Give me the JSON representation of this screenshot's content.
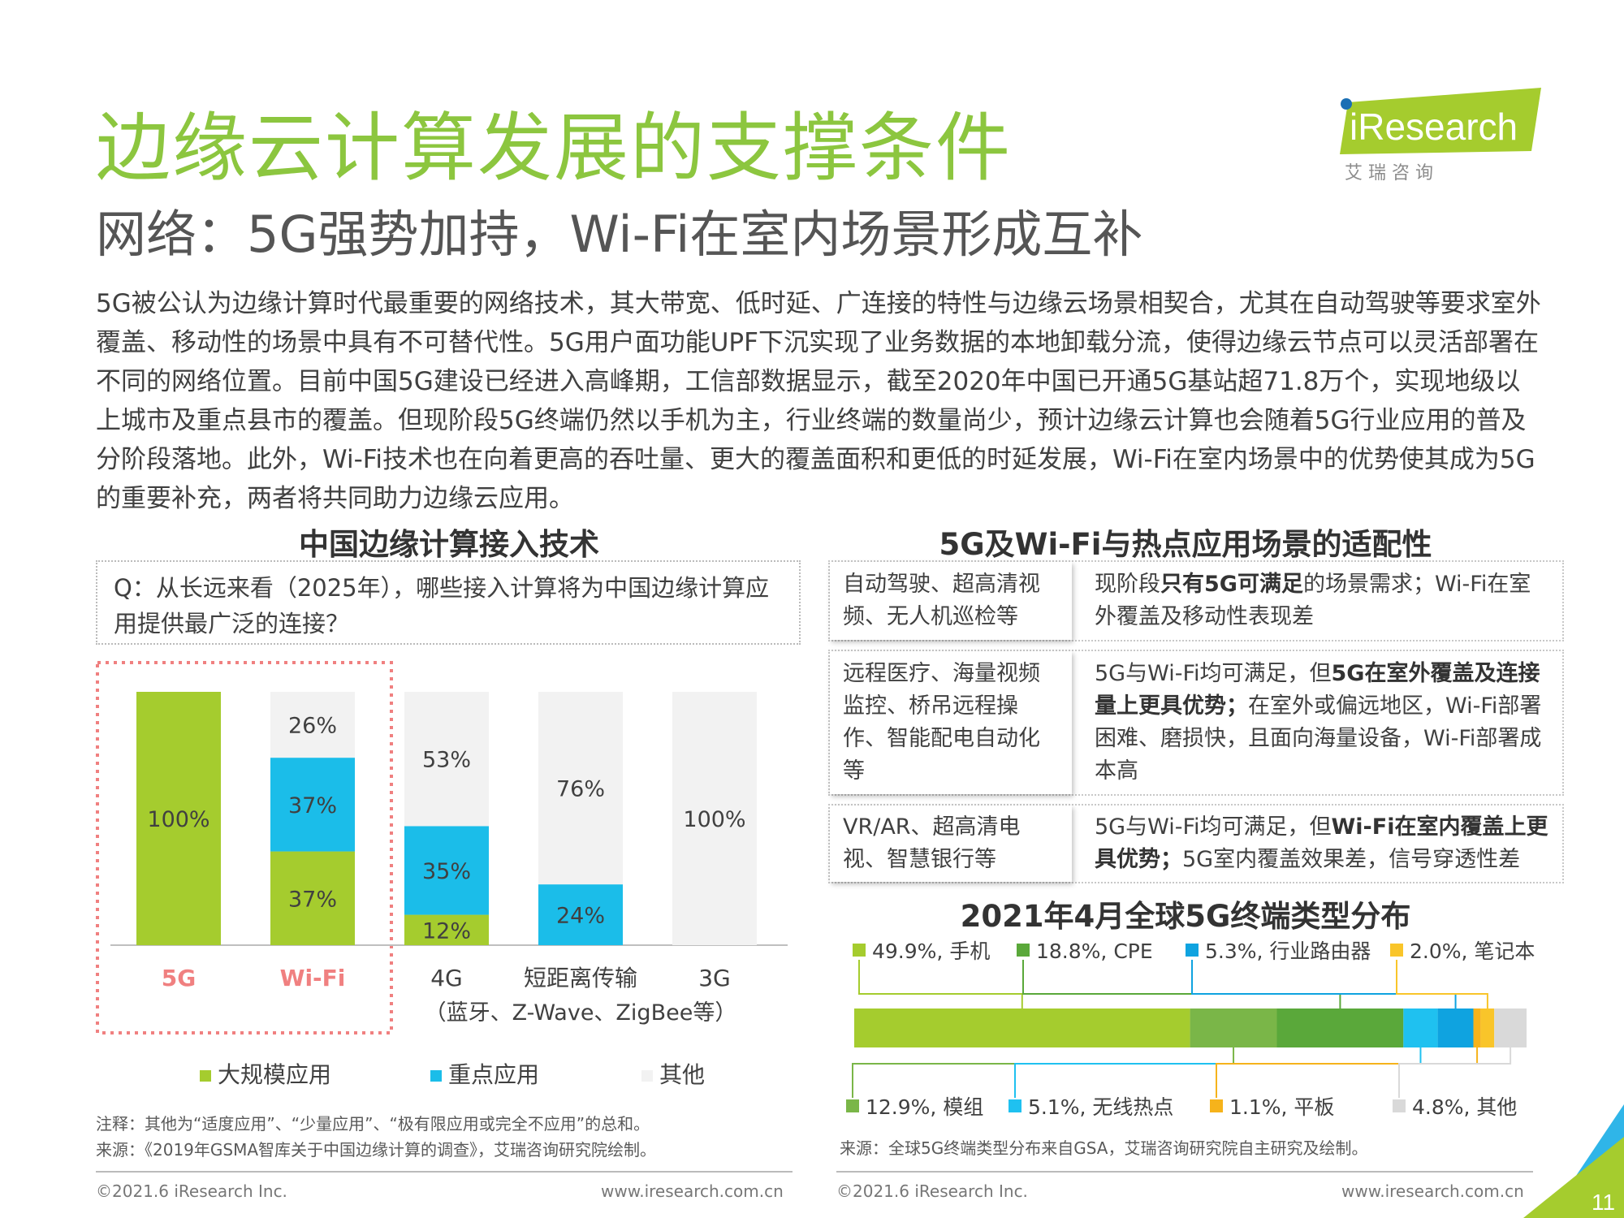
{
  "title": "边缘云计算发展的支撑条件",
  "subtitle": "网络：5G强势加持，Wi-Fi在室内场景形成互补",
  "logo": {
    "brand": "iResearch",
    "cn": "艾 瑞 咨 询"
  },
  "intro": "5G被公认为边缘计算时代最重要的网络技术，其大带宽、低时延、广连接的特性与边缘云场景相契合，尤其在自动驾驶等要求室外覆盖、移动性的场景中具有不可替代性。5G用户面功能UPF下沉实现了业务数据的本地卸载分流，使得边缘云节点可以灵活部署在不同的网络位置。目前中国5G建设已经进入高峰期，工信部数据显示，截至2020年中国已开通5G基站超71.8万个，实现地级以上城市及重点县市的覆盖。但现阶段5G终端仍然以手机为主，行业终端的数量尚少，预计边缘云计算也会随着5G行业应用的普及分阶段落地。此外，Wi-Fi技术也在向着更高的吞吐量、更大的覆盖面积和更低的时延发展，Wi-Fi在室内场景中的优势使其成为5G的重要补充，两者将共同助力边缘云应用。",
  "left": {
    "section_title": "中国边缘计算接入技术",
    "question": "Q：从长远来看（2025年），哪些接入计算将为中国边缘计算应用提供最广泛的连接？",
    "legend": [
      "大规模应用",
      "重点应用",
      "其他"
    ],
    "note": "注释：其他为“适度应用”、“少量应用”、“极有限应用或完全不应用”的总和。",
    "source": "来源：《2019年GSMA智库关于中国边缘计算的调查》，艾瑞咨询研究院绘制。"
  },
  "right": {
    "section_title": "5G及Wi-Fi与热点应用场景的适配性",
    "rows": [
      {
        "scene": "自动驾驶、超高清视频、无人机巡检等",
        "parts": [
          {
            "t": "现阶段",
            "b": false
          },
          {
            "t": "只有5G可满足",
            "b": true
          },
          {
            "t": "的场景需求；Wi-Fi在室外覆盖及移动性表现差",
            "b": false
          }
        ]
      },
      {
        "scene": "远程医疗、海量视频监控、桥吊远程操作、智能配电自动化等",
        "parts": [
          {
            "t": "5G与Wi-Fi均可满足，但",
            "b": false
          },
          {
            "t": "5G在室外覆盖及连接量上更具优势；",
            "b": true
          },
          {
            "t": "在室外或偏远地区，Wi-Fi部署困难、磨损快，且面向海量设备，Wi-Fi部署成本高",
            "b": false
          }
        ]
      },
      {
        "scene": "VR/AR、超高清电视、智慧银行等",
        "parts": [
          {
            "t": "5G与Wi-Fi均可满足，但",
            "b": false
          },
          {
            "t": "Wi-Fi在室内覆盖上更具优势；",
            "b": true
          },
          {
            "t": "5G室内覆盖效果差，信号穿透性差",
            "b": false
          }
        ]
      }
    ],
    "terminal_title": "2021年4月全球5G终端类型分布",
    "source": "来源：全球5G终端类型分布来自GSA，艾瑞咨询研究院自主研究及绘制。"
  },
  "footer": {
    "copyright": "©2021.6 iResearch Inc.",
    "url": "www.iresearch.com.cn",
    "page": "11"
  },
  "colors": {
    "green": "#a5cc2e",
    "blue": "#1bbde9",
    "other": "#f2f2f2",
    "title_green": "#8cc63f",
    "highlight": "#f08080"
  },
  "chart_data": [
    {
      "type": "bar",
      "stacked": true,
      "categories": [
        "5G",
        "Wi-Fi",
        "4G",
        "短距离传输",
        "3G"
      ],
      "category_sublabels": [
        "",
        "",
        "",
        "（蓝牙、Z-Wave、ZigBee等）",
        ""
      ],
      "highlighted_categories": [
        "5G",
        "Wi-Fi"
      ],
      "series": [
        {
          "name": "大规模应用",
          "color": "#a5cc2e",
          "values": [
            100,
            37,
            12,
            0,
            0
          ]
        },
        {
          "name": "重点应用",
          "color": "#1bbde9",
          "values": [
            0,
            37,
            35,
            24,
            0
          ]
        },
        {
          "name": "其他",
          "color": "#f2f2f2",
          "values": [
            0,
            26,
            53,
            76,
            100
          ]
        }
      ],
      "labels_percent": true,
      "ylim": [
        0,
        100
      ],
      "legend": "bottom"
    },
    {
      "type": "bar",
      "orientation": "horizontal",
      "stacked": true,
      "title": "2021年4月全球5G终端类型分布",
      "segments": [
        {
          "name": "手机",
          "value": 49.9,
          "color": "#a5cc2e"
        },
        {
          "name": "模组",
          "value": 12.9,
          "color": "#7ab648"
        },
        {
          "name": "CPE",
          "value": 18.8,
          "color": "#5aa83a"
        },
        {
          "name": "无线热点",
          "value": 5.1,
          "color": "#1fc1f0"
        },
        {
          "name": "行业路由器",
          "value": 5.3,
          "color": "#0fa3e0"
        },
        {
          "name": "平板",
          "value": 1.1,
          "color": "#f6b31b"
        },
        {
          "name": "笔记本",
          "value": 2.0,
          "color": "#f9c52a"
        },
        {
          "name": "其他",
          "value": 4.8,
          "color": "#d9d9d9"
        }
      ],
      "legend": "callouts"
    }
  ]
}
